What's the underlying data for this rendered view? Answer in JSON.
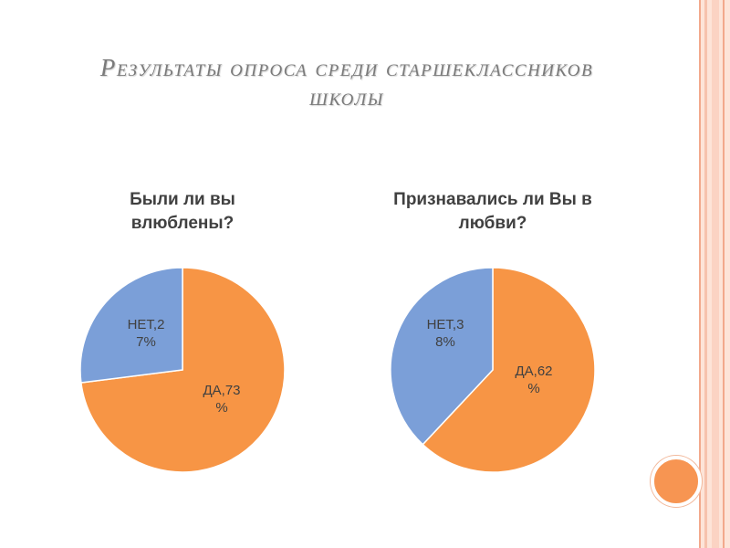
{
  "slide": {
    "title_line1": "Результаты опроса среди старшеклассников",
    "title_line2": "школы"
  },
  "chart_data": [
    {
      "type": "pie",
      "title": "Были ли вы влюблены?",
      "categories": [
        "ДА",
        "НЕТ"
      ],
      "values": [
        73,
        27
      ],
      "unit": "%",
      "colors": [
        "#f79545",
        "#7b9fd8"
      ],
      "data_labels": [
        [
          "ДА,73",
          "%"
        ],
        [
          "НЕТ,2",
          "7%"
        ]
      ]
    },
    {
      "type": "pie",
      "title": "Признавались ли Вы в любви?",
      "categories": [
        "ДА",
        "НЕТ"
      ],
      "values": [
        62,
        38
      ],
      "unit": "%",
      "colors": [
        "#f79545",
        "#7b9fd8"
      ],
      "data_labels": [
        [
          "ДА,62",
          "%"
        ],
        [
          "НЕТ,3",
          "8%"
        ]
      ]
    }
  ]
}
